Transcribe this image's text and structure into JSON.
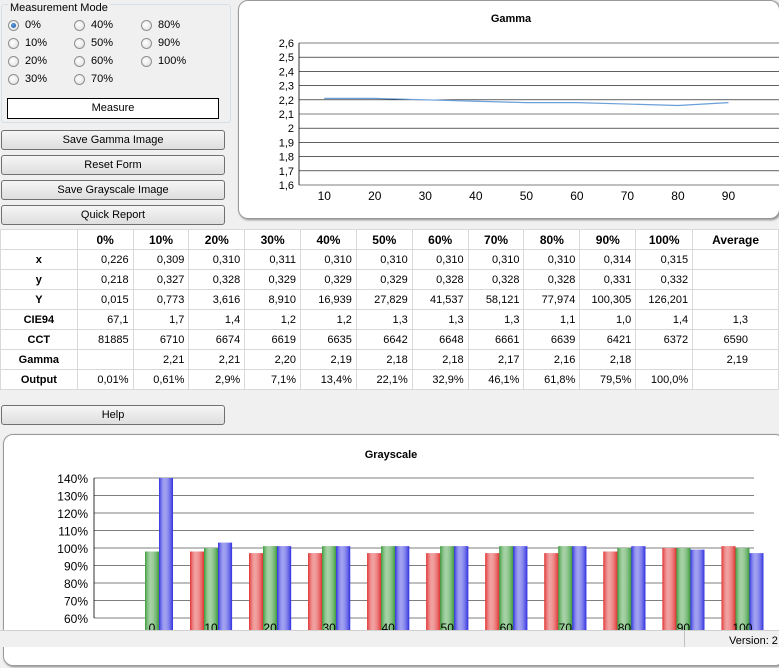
{
  "measurement_mode": {
    "title": "Measurement Mode",
    "options": [
      "0%",
      "10%",
      "20%",
      "30%",
      "40%",
      "50%",
      "60%",
      "70%",
      "80%",
      "90%",
      "100%"
    ],
    "selected": "0%",
    "measure_label": "Measure"
  },
  "buttons": {
    "save_gamma": "Save Gamma Image",
    "reset_form": "Reset Form",
    "save_grayscale": "Save Grayscale Image",
    "quick_report": "Quick Report",
    "help": "Help"
  },
  "gamma_chart": {
    "type": "line",
    "title": "Gamma",
    "x": [
      10,
      20,
      30,
      40,
      50,
      60,
      70,
      80,
      90
    ],
    "values": [
      2.21,
      2.21,
      2.2,
      2.19,
      2.18,
      2.18,
      2.17,
      2.16,
      2.18
    ],
    "xticks": [
      "10",
      "20",
      "30",
      "40",
      "50",
      "60",
      "70",
      "80",
      "90"
    ],
    "yticks": [
      "1,6",
      "1,7",
      "1,8",
      "1,9",
      "2",
      "2,1",
      "2,2",
      "2,3",
      "2,4",
      "2,5",
      "2,6"
    ],
    "ylim": [
      1.6,
      2.6
    ],
    "grid": "horizontal",
    "line_color": "#6a9fd8"
  },
  "table": {
    "columns": [
      "",
      "0%",
      "10%",
      "20%",
      "30%",
      "40%",
      "50%",
      "60%",
      "70%",
      "80%",
      "90%",
      "100%",
      "Average"
    ],
    "rows": [
      {
        "label": "x",
        "cells": [
          "0,226",
          "0,309",
          "0,310",
          "0,311",
          "0,310",
          "0,310",
          "0,310",
          "0,310",
          "0,310",
          "0,314",
          "0,315",
          ""
        ]
      },
      {
        "label": "y",
        "cells": [
          "0,218",
          "0,327",
          "0,328",
          "0,329",
          "0,329",
          "0,329",
          "0,328",
          "0,328",
          "0,328",
          "0,331",
          "0,332",
          ""
        ]
      },
      {
        "label": "Y",
        "cells": [
          "0,015",
          "0,773",
          "3,616",
          "8,910",
          "16,939",
          "27,829",
          "41,537",
          "58,121",
          "77,974",
          "100,305",
          "126,201",
          ""
        ]
      },
      {
        "label": "CIE94",
        "cells": [
          "67,1",
          "1,7",
          "1,4",
          "1,2",
          "1,2",
          "1,3",
          "1,3",
          "1,3",
          "1,1",
          "1,0",
          "1,4",
          "1,3"
        ]
      },
      {
        "label": "CCT",
        "cells": [
          "81885",
          "6710",
          "6674",
          "6619",
          "6635",
          "6642",
          "6648",
          "6661",
          "6639",
          "6421",
          "6372",
          "6590"
        ]
      },
      {
        "label": "Gamma",
        "cells": [
          "",
          "2,21",
          "2,21",
          "2,20",
          "2,19",
          "2,18",
          "2,18",
          "2,17",
          "2,16",
          "2,18",
          "",
          "2,19"
        ]
      },
      {
        "label": "Output",
        "cells": [
          "0,01%",
          "0,61%",
          "2,9%",
          "7,1%",
          "13,4%",
          "22,1%",
          "32,9%",
          "46,1%",
          "61,8%",
          "79,5%",
          "100,0%",
          ""
        ]
      }
    ]
  },
  "chart_data": {
    "type": "bar",
    "title": "Grayscale",
    "categories": [
      "0",
      "10",
      "20",
      "30",
      "40",
      "50",
      "60",
      "70",
      "80",
      "90",
      "100"
    ],
    "series": [
      {
        "color": "#e03030",
        "values": [
          null,
          98,
          97,
          97,
          97,
          97,
          97,
          97,
          98,
          100,
          101
        ]
      },
      {
        "color": "#3a9a3a",
        "values": [
          98,
          100,
          101,
          101,
          101,
          101,
          101,
          101,
          100,
          100,
          100
        ]
      },
      {
        "color": "#3030e0",
        "values": [
          140,
          103,
          101,
          101,
          101,
          101,
          101,
          101,
          101,
          99,
          97
        ]
      }
    ],
    "yticks": [
      "60%",
      "70%",
      "80%",
      "90%",
      "100%",
      "110%",
      "120%",
      "130%",
      "140%"
    ],
    "ylim": [
      60,
      140
    ],
    "grid": "horizontal"
  },
  "status": {
    "version": "Version: 2"
  }
}
